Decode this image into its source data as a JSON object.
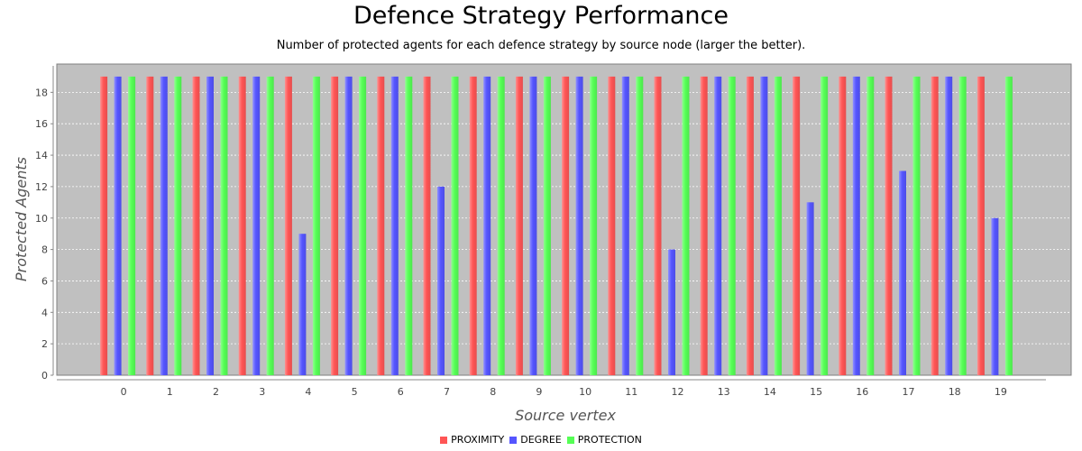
{
  "chart_data": {
    "type": "bar",
    "title": "Defence Strategy Performance",
    "subtitle": "Number of protected agents for each defence strategy by source node (larger the better).",
    "xlabel": "Source vertex",
    "ylabel": "Protected Agents",
    "categories": [
      "0",
      "1",
      "2",
      "3",
      "4",
      "5",
      "6",
      "7",
      "8",
      "9",
      "10",
      "11",
      "12",
      "13",
      "14",
      "15",
      "16",
      "17",
      "18",
      "19"
    ],
    "series": [
      {
        "name": "PROXIMITY",
        "color": "#ff5555",
        "values": [
          19,
          19,
          19,
          19,
          19,
          19,
          19,
          19,
          19,
          19,
          19,
          19,
          19,
          19,
          19,
          19,
          19,
          19,
          19,
          19
        ]
      },
      {
        "name": "DEGREE",
        "color": "#5555ff",
        "values": [
          19,
          19,
          19,
          19,
          9,
          19,
          19,
          12,
          19,
          19,
          19,
          19,
          8,
          19,
          19,
          11,
          19,
          13,
          19,
          10
        ]
      },
      {
        "name": "PROTECTION",
        "color": "#55ff55",
        "values": [
          19,
          19,
          19,
          19,
          19,
          19,
          19,
          19,
          19,
          19,
          19,
          19,
          19,
          19,
          19,
          19,
          19,
          19,
          19,
          19
        ]
      }
    ],
    "ylim": [
      0,
      19.8
    ],
    "yticks": [
      0,
      2,
      4,
      6,
      8,
      10,
      12,
      14,
      16,
      18
    ],
    "grid": true,
    "plot_background": "#c0c0c0",
    "legend_position": "bottom"
  }
}
